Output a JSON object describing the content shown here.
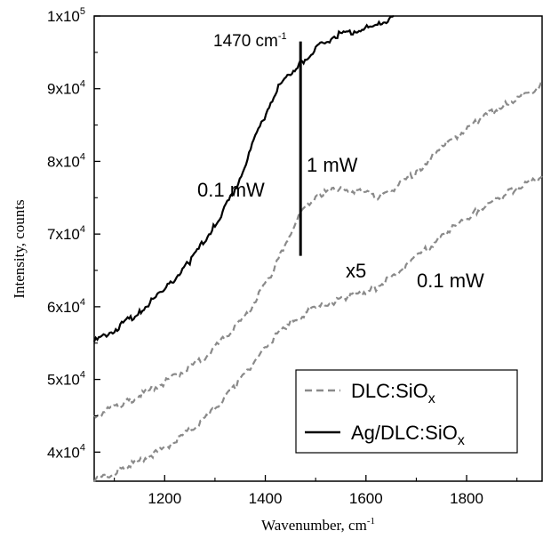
{
  "chart_data": {
    "type": "line",
    "title": "",
    "xlabel": "Wavenumber, cm",
    "xlabel_sup": "-1",
    "ylabel": "Intensity, counts",
    "xlim": [
      1060,
      1950
    ],
    "ylim": [
      36000,
      100000
    ],
    "x_ticks": [
      1200,
      1400,
      1600,
      1800
    ],
    "y_ticks": [
      {
        "value": 40000,
        "base": "4x10",
        "exp": "4"
      },
      {
        "value": 50000,
        "base": "5x10",
        "exp": "4"
      },
      {
        "value": 60000,
        "base": "6x10",
        "exp": "4"
      },
      {
        "value": 70000,
        "base": "7x10",
        "exp": "4"
      },
      {
        "value": 80000,
        "base": "8x10",
        "exp": "4"
      },
      {
        "value": 90000,
        "base": "9x10",
        "exp": "4"
      },
      {
        "value": 100000,
        "base": "1x10",
        "exp": "5"
      }
    ],
    "grid": false,
    "legend_position": "bottom-right",
    "series": [
      {
        "name": "Ag/DLC:SiOx",
        "color": "#000000",
        "style": "solid",
        "x": [
          1060,
          1100,
          1150,
          1200,
          1250,
          1300,
          1340,
          1380,
          1420,
          1450,
          1470,
          1500,
          1540,
          1580,
          1620,
          1655
        ],
        "y": [
          55200,
          56800,
          59300,
          62300,
          66200,
          71200,
          76000,
          83200,
          89600,
          92200,
          93500,
          95500,
          97300,
          98000,
          98600,
          100000
        ]
      },
      {
        "name": "DLC:SiOx (1 mW)",
        "color": "#8a8a8a",
        "style": "dashed",
        "x": [
          1060,
          1120,
          1200,
          1280,
          1360,
          1420,
          1460,
          1500,
          1550,
          1600,
          1620,
          1650,
          1700,
          1760,
          1820,
          1880,
          1950
        ],
        "y": [
          45000,
          46700,
          49600,
          53000,
          58500,
          65500,
          71800,
          75300,
          76300,
          75600,
          75000,
          76000,
          78500,
          82500,
          85500,
          88000,
          90500
        ]
      },
      {
        "name": "DLC:SiOx (0.1 mW, x5)",
        "color": "#8a8a8a",
        "style": "dashed",
        "x": [
          1060,
          1120,
          1200,
          1280,
          1340,
          1400,
          1450,
          1500,
          1560,
          1620,
          1650,
          1700,
          1760,
          1820,
          1880,
          1950
        ],
        "y": [
          36000,
          37800,
          40500,
          44500,
          49000,
          54500,
          58000,
          59800,
          61300,
          62600,
          64000,
          66800,
          70200,
          73200,
          75600,
          78000
        ]
      }
    ],
    "annotations": {
      "peak_label": "1470 cm",
      "peak_label_sup": "-1",
      "peak_line_x": 1470,
      "peak_line_y": [
        67000,
        96500
      ],
      "label_black_power": "0.1 mW",
      "label_gray_top_power": "1 mW",
      "label_gray_bottom_scale": "x5",
      "label_gray_bottom_power": "0.1 mW"
    },
    "legend": [
      {
        "label": "DLC:SiO",
        "sub": "x",
        "style": "dashed",
        "color": "#8a8a8a"
      },
      {
        "label": "Ag/DLC:SiO",
        "sub": "x",
        "style": "solid",
        "color": "#000000"
      }
    ]
  }
}
